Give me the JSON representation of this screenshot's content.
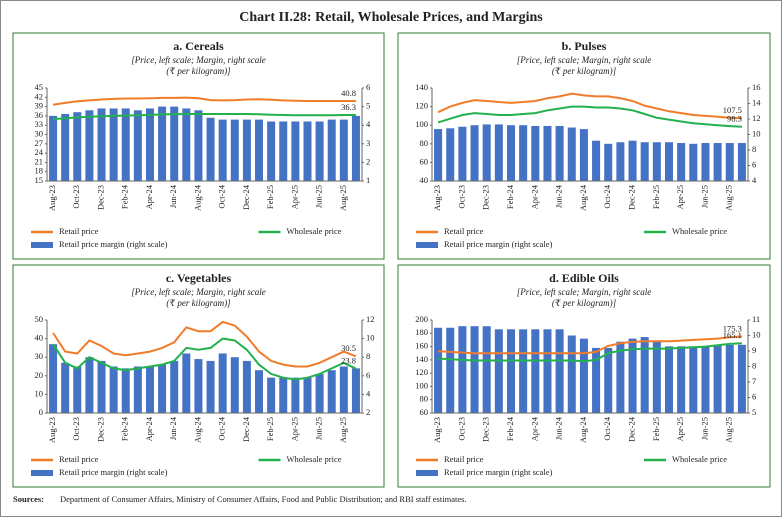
{
  "title": "Chart II.28: Retail, Wholesale Prices, and Margins",
  "sources_label": "Sources:",
  "sources": "Department of Consumer Affairs, Ministry of Consumer Affairs, Food and Public Distribution; and RBI staff estimates.",
  "chart_data": [
    {
      "type": "combo",
      "title": "a. Cereals",
      "subtitle": [
        "[Price, left scale; Margin, right scale",
        "(₹ per kilogram)]"
      ],
      "categories": [
        "Aug-23",
        null,
        "Oct-23",
        null,
        "Dec-23",
        null,
        "Feb-24",
        null,
        "Apr-24",
        null,
        "Jun-24",
        null,
        "Aug-24",
        null,
        "Oct-24",
        null,
        "Dec-24",
        null,
        "Feb-25",
        null,
        "Apr-25",
        null,
        "Jun-25",
        null,
        "Aug-25",
        null
      ],
      "ylim": [
        15,
        45
      ],
      "yticks": [
        15,
        18,
        21,
        24,
        27,
        30,
        33,
        36,
        39,
        42,
        45
      ],
      "y2lim": [
        1,
        6
      ],
      "y2ticks": [
        1,
        2,
        3,
        4,
        5,
        6
      ],
      "series": [
        {
          "name": "Retail price margin (right scale)",
          "type": "bar",
          "axis": "y2",
          "color": "#4472c4",
          "values": [
            4.5,
            4.6,
            4.7,
            4.8,
            4.9,
            4.9,
            4.9,
            4.8,
            4.9,
            5.0,
            5.0,
            4.9,
            4.8,
            4.4,
            4.3,
            4.3,
            4.3,
            4.3,
            4.2,
            4.2,
            4.2,
            4.2,
            4.2,
            4.3,
            4.3,
            4.5
          ]
        },
        {
          "name": "Retail price",
          "type": "line",
          "color": "#f07c2a",
          "values": [
            39.6,
            40.2,
            40.7,
            41.0,
            41.3,
            41.5,
            41.6,
            41.6,
            41.7,
            41.8,
            41.8,
            41.9,
            41.7,
            41.1,
            41.0,
            41.1,
            41.3,
            41.4,
            41.2,
            41.0,
            40.9,
            40.8,
            40.8,
            40.8,
            40.8,
            40.8
          ]
        },
        {
          "name": "Wholesale price",
          "type": "line",
          "color": "#22b14c",
          "values": [
            35.0,
            35.2,
            35.5,
            35.7,
            35.9,
            36.0,
            36.1,
            36.2,
            36.3,
            36.5,
            36.5,
            36.6,
            36.6,
            36.6,
            36.6,
            36.6,
            36.6,
            36.5,
            36.4,
            36.3,
            36.2,
            36.2,
            36.2,
            36.2,
            36.3,
            36.3
          ]
        }
      ]
    },
    {
      "type": "combo",
      "title": "b. Pulses",
      "subtitle": [
        "[Price, left scale; Margin, right scale",
        "(₹ per kilogram)]"
      ],
      "categories": [
        "Aug-23",
        null,
        "Oct-23",
        null,
        "Dec-23",
        null,
        "Feb-24",
        null,
        "Apr-24",
        null,
        "Jun-24",
        null,
        "Aug-24",
        null,
        "Oct-24",
        null,
        "Dec-24",
        null,
        "Feb-25",
        null,
        "Apr-25",
        null,
        "Jun-25",
        null,
        "Aug-25",
        null
      ],
      "ylim": [
        40,
        140
      ],
      "yticks": [
        40,
        60,
        80,
        100,
        120,
        140
      ],
      "y2lim": [
        4,
        16
      ],
      "y2ticks": [
        4,
        6,
        8,
        10,
        12,
        14,
        16
      ],
      "series": [
        {
          "name": "Retail price margin (right scale)",
          "type": "bar",
          "axis": "y2",
          "color": "#4472c4",
          "values": [
            10.7,
            10.8,
            11.0,
            11.2,
            11.3,
            11.3,
            11.2,
            11.2,
            11.1,
            11.1,
            11.1,
            10.9,
            10.7,
            9.2,
            8.8,
            9.0,
            9.2,
            9.0,
            9.0,
            9.0,
            8.9,
            8.8,
            8.9,
            8.9,
            8.9,
            8.9
          ]
        },
        {
          "name": "Retail price",
          "type": "line",
          "color": "#f07c2a",
          "values": [
            114,
            120,
            124,
            127,
            126,
            125,
            124,
            125,
            126,
            129,
            131,
            134,
            132,
            131,
            131,
            129,
            126,
            121,
            118,
            115,
            113,
            111,
            110,
            109,
            108,
            107.5
          ]
        },
        {
          "name": "Wholesale price",
          "type": "line",
          "color": "#22b14c",
          "values": [
            103,
            107,
            111,
            113,
            112,
            111,
            111,
            112,
            113,
            116,
            118,
            120,
            120,
            119,
            119,
            118,
            116,
            112,
            108,
            106,
            104,
            102,
            101,
            100,
            99,
            98.3
          ]
        }
      ]
    },
    {
      "type": "combo",
      "title": "c. Vegetables",
      "subtitle": [
        "[Price, left scale; Margin, right scale",
        "(₹ per kilogram)]"
      ],
      "categories": [
        "Aug-23",
        null,
        "Oct-23",
        null,
        "Dec-23",
        null,
        "Feb-24",
        null,
        "Apr-24",
        null,
        "Jun-24",
        null,
        "Aug-24",
        null,
        "Oct-24",
        null,
        "Dec-24",
        null,
        "Feb-25",
        null,
        "Apr-25",
        null,
        "Jun-25",
        null,
        "Aug-25",
        null
      ],
      "ylim": [
        0,
        50
      ],
      "yticks": [
        0,
        10,
        20,
        30,
        40,
        50
      ],
      "y2lim": [
        2,
        12
      ],
      "y2ticks": [
        2,
        4,
        6,
        8,
        10,
        12
      ],
      "series": [
        {
          "name": "Retail price margin (right scale)",
          "type": "bar",
          "axis": "y2",
          "color": "#4472c4",
          "values": [
            9.4,
            7.4,
            7.0,
            8.0,
            7.6,
            7.0,
            6.8,
            7.0,
            7.0,
            7.2,
            7.6,
            8.4,
            7.8,
            7.6,
            8.4,
            8.0,
            7.6,
            6.6,
            5.8,
            5.8,
            5.8,
            5.8,
            6.2,
            6.6,
            7.0,
            6.8
          ]
        },
        {
          "name": "Retail price",
          "type": "line",
          "color": "#f07c2a",
          "values": [
            43,
            33,
            32,
            39,
            36,
            32,
            31,
            32,
            33,
            35,
            38,
            46,
            44,
            44,
            49,
            47,
            41,
            33,
            28,
            26,
            25,
            25,
            27,
            30,
            33,
            30.5
          ]
        },
        {
          "name": "Wholesale price",
          "type": "line",
          "color": "#22b14c",
          "values": [
            37,
            27,
            24,
            30,
            27,
            24,
            23,
            24,
            25,
            26,
            28,
            35,
            34,
            35,
            40,
            39,
            34,
            26,
            21,
            19,
            18,
            19,
            21,
            24,
            27,
            23.8
          ]
        }
      ]
    },
    {
      "type": "combo",
      "title": "d. Edible Oils",
      "subtitle": [
        "[Price, left scale; Margin, right scale",
        "(₹ per kilogram)]"
      ],
      "categories": [
        "Aug-23",
        null,
        "Oct-23",
        null,
        "Dec-23",
        null,
        "Feb-24",
        null,
        "Apr-24",
        null,
        "Jun-24",
        null,
        "Aug-24",
        null,
        "Oct-24",
        null,
        "Dec-24",
        null,
        "Feb-25",
        null,
        "Apr-25",
        null,
        "Jun-25",
        null,
        "Aug-25",
        null
      ],
      "ylim": [
        60,
        200
      ],
      "yticks": [
        60,
        80,
        100,
        120,
        140,
        160,
        180,
        200
      ],
      "y2lim": [
        5,
        11
      ],
      "y2ticks": [
        5,
        6,
        7,
        8,
        9,
        10,
        11
      ],
      "series": [
        {
          "name": "Retail price margin (right scale)",
          "type": "bar",
          "axis": "y2",
          "color": "#4472c4",
          "values": [
            10.5,
            10.5,
            10.6,
            10.6,
            10.6,
            10.4,
            10.4,
            10.4,
            10.4,
            10.4,
            10.4,
            10.0,
            9.8,
            9.2,
            9.2,
            9.6,
            9.8,
            9.9,
            9.6,
            9.3,
            9.3,
            9.3,
            9.3,
            9.4,
            9.4,
            9.4
          ]
        },
        {
          "name": "Retail price",
          "type": "line",
          "color": "#f07c2a",
          "values": [
            153,
            152,
            151,
            150,
            150,
            150,
            150,
            150,
            150,
            150,
            150,
            150,
            150,
            152,
            161,
            165,
            167,
            168,
            168,
            168,
            169,
            170,
            171,
            172,
            174,
            175.3
          ]
        },
        {
          "name": "Wholesale price",
          "type": "line",
          "color": "#22b14c",
          "values": [
            142,
            141,
            140,
            139,
            139,
            139,
            139,
            139,
            139,
            139,
            139,
            139,
            138,
            140,
            150,
            154,
            156,
            157,
            157,
            157,
            158,
            159,
            160,
            162,
            164,
            165.1
          ]
        }
      ]
    }
  ]
}
